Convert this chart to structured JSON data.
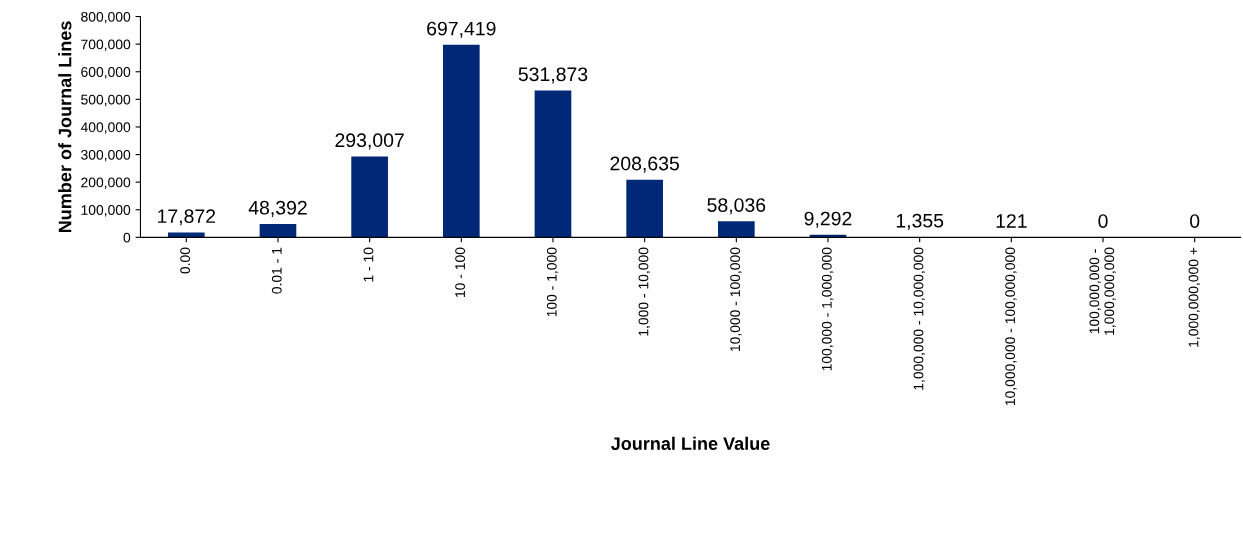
{
  "chart_data": {
    "type": "bar",
    "xlabel": "Journal Line Value",
    "ylabel": "Number of Journal Lines",
    "categories": [
      "0.00",
      "0.01 - 1",
      "1 - 10",
      "10 - 100",
      "100 - 1,000",
      "1,000 - 10,000",
      "10,000 - 100,000",
      "100,000 - 1,000,000",
      "1,000,000 - 10,000,000",
      "10,000,000 - 100,000,000",
      "100,000,000 -\n1,000,000,000",
      "1,000,000,000 +"
    ],
    "values": [
      17872,
      48392,
      293007,
      697419,
      531873,
      208635,
      58036,
      9292,
      1355,
      121,
      0,
      0
    ],
    "color": "#002877",
    "ylim": [
      0,
      800000
    ],
    "yticks": [
      {
        "value": 0,
        "label": "0"
      },
      {
        "value": 100000,
        "label": "100,000"
      },
      {
        "value": 200000,
        "label": "200,000"
      },
      {
        "value": 300000,
        "label": "300,000"
      },
      {
        "value": 400000,
        "label": "400,000"
      },
      {
        "value": 500000,
        "label": "500,000"
      },
      {
        "value": 600000,
        "label": "600,000"
      },
      {
        "value": 700000,
        "label": "700,000"
      },
      {
        "value": 800000,
        "label": "800,000"
      }
    ],
    "value_labels": [
      "17,872",
      "48,392",
      "293,007",
      "697,419",
      "531,873",
      "208,635",
      "58,036",
      "9,292",
      "1,355",
      "121",
      "0",
      "0"
    ],
    "grid": false,
    "legend": false
  }
}
